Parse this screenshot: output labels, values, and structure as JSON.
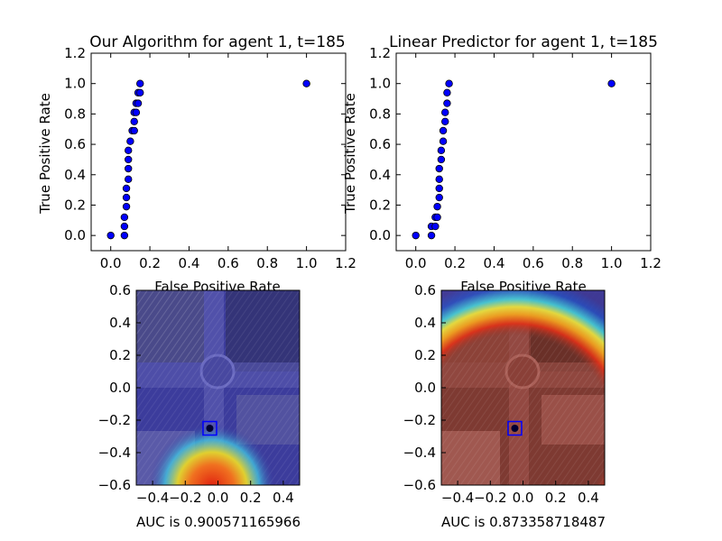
{
  "chart_data": [
    {
      "type": "scatter",
      "title": "Our Algorithm for agent 1, t=185",
      "xlabel": "False Positive Rate",
      "ylabel": "True Positive Rate",
      "xlim": [
        -0.1,
        1.2
      ],
      "ylim": [
        -0.1,
        1.2
      ],
      "xticks": [
        "0.0",
        "0.2",
        "0.4",
        "0.6",
        "0.8",
        "1.0",
        "1.2"
      ],
      "yticks": [
        "0.0",
        "0.2",
        "0.4",
        "0.6",
        "0.8",
        "1.0",
        "1.2"
      ],
      "marker_color": "#0000ff",
      "points": [
        [
          0.0,
          0.0
        ],
        [
          0.07,
          0.0
        ],
        [
          0.07,
          0.06
        ],
        [
          0.07,
          0.12
        ],
        [
          0.08,
          0.19
        ],
        [
          0.08,
          0.25
        ],
        [
          0.08,
          0.31
        ],
        [
          0.09,
          0.37
        ],
        [
          0.09,
          0.44
        ],
        [
          0.09,
          0.5
        ],
        [
          0.09,
          0.56
        ],
        [
          0.1,
          0.62
        ],
        [
          0.11,
          0.69
        ],
        [
          0.12,
          0.69
        ],
        [
          0.12,
          0.75
        ],
        [
          0.12,
          0.81
        ],
        [
          0.13,
          0.81
        ],
        [
          0.13,
          0.87
        ],
        [
          0.14,
          0.87
        ],
        [
          0.14,
          0.94
        ],
        [
          0.15,
          0.94
        ],
        [
          0.15,
          1.0
        ],
        [
          1.0,
          1.0
        ]
      ]
    },
    {
      "type": "scatter",
      "title": "Linear Predictor for agent 1, t=185",
      "xlabel": "False Positive Rate",
      "ylabel": "True Positive Rate",
      "xlim": [
        -0.1,
        1.2
      ],
      "ylim": [
        -0.1,
        1.2
      ],
      "xticks": [
        "0.0",
        "0.2",
        "0.4",
        "0.6",
        "0.8",
        "1.0",
        "1.2"
      ],
      "yticks": [
        "0.0",
        "0.2",
        "0.4",
        "0.6",
        "0.8",
        "1.0",
        "1.2"
      ],
      "marker_color": "#0000ff",
      "points": [
        [
          0.0,
          0.0
        ],
        [
          0.08,
          0.0
        ],
        [
          0.08,
          0.06
        ],
        [
          0.1,
          0.06
        ],
        [
          0.1,
          0.12
        ],
        [
          0.11,
          0.12
        ],
        [
          0.11,
          0.19
        ],
        [
          0.12,
          0.25
        ],
        [
          0.12,
          0.31
        ],
        [
          0.12,
          0.37
        ],
        [
          0.12,
          0.44
        ],
        [
          0.13,
          0.5
        ],
        [
          0.13,
          0.56
        ],
        [
          0.14,
          0.62
        ],
        [
          0.14,
          0.69
        ],
        [
          0.15,
          0.75
        ],
        [
          0.15,
          0.81
        ],
        [
          0.16,
          0.87
        ],
        [
          0.16,
          0.94
        ],
        [
          0.17,
          1.0
        ],
        [
          1.0,
          1.0
        ]
      ]
    },
    {
      "type": "heatmap",
      "caption": "AUC is 0.900571165966",
      "xlim": [
        -0.5,
        0.5
      ],
      "ylim": [
        -0.6,
        0.6
      ],
      "xticks": [
        "−0.4",
        "−0.2",
        "0.0",
        "0.2",
        "0.4"
      ],
      "yticks": [
        "−0.6",
        "−0.4",
        "−0.2",
        "0.0",
        "0.2",
        "0.4",
        "0.6"
      ],
      "agent": [
        -0.05,
        -0.25
      ],
      "hotspot": [
        -0.05,
        -0.6
      ],
      "colors": {
        "base": "#3a3aa0",
        "hot": "#e03010",
        "warm": "#f0d030",
        "cool": "#30c0e0"
      }
    },
    {
      "type": "heatmap",
      "caption": "AUC is 0.873358718487",
      "xlim": [
        -0.5,
        0.5
      ],
      "ylim": [
        -0.6,
        0.6
      ],
      "xticks": [
        "−0.4",
        "−0.2",
        "0.0",
        "0.2",
        "0.4"
      ],
      "yticks": [
        "−0.6",
        "−0.4",
        "−0.2",
        "0.0",
        "0.2",
        "0.4",
        "0.6"
      ],
      "agent": [
        -0.05,
        -0.25
      ],
      "arc_radius": 0.58,
      "colors": {
        "base": "#8a3a30",
        "ring_outer": "#2040c0",
        "ring_mid": "#30c0e0",
        "ring_inner": "#f0d030"
      }
    }
  ]
}
